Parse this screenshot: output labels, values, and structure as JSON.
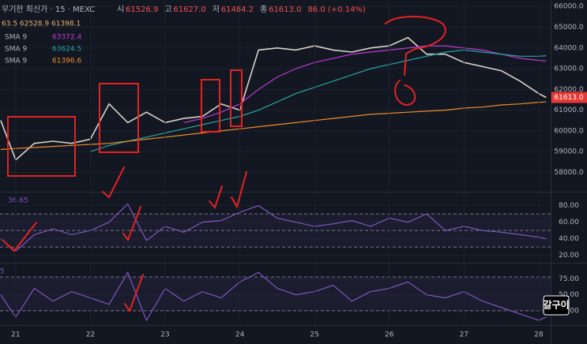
{
  "header": {
    "title": "무기한 최신가 · 15 · MEXC",
    "ohlc": [
      {
        "label": "시",
        "value": "61526.9"
      },
      {
        "label": "고",
        "value": "61627.0"
      },
      {
        "label": "저",
        "value": "61484.2"
      },
      {
        "label": "종",
        "value": "61613.0"
      },
      {
        "label": "",
        "value": "86.0 (+0.14%)"
      }
    ],
    "bands": "63.5  62528.9  61398.1",
    "watermark": "갈구이"
  },
  "chart_data": [
    {
      "type": "line",
      "x": [
        20.8,
        21,
        21.25,
        21.5,
        21.75,
        22,
        22.25,
        22.5,
        22.75,
        23,
        23.25,
        23.5,
        23.75,
        24,
        24.25,
        24.5,
        24.75,
        25,
        25.25,
        25.5,
        25.75,
        26,
        26.25,
        26.5,
        26.75,
        27,
        27.25,
        27.5,
        27.75,
        28,
        28.1
      ],
      "xlim": [
        20.79,
        28.16
      ],
      "ylim": [
        57180,
        66160
      ],
      "yticks": [
        {
          "value": 58000,
          "label": "58000.0"
        },
        {
          "value": 59000,
          "label": "59000.0"
        },
        {
          "value": 60000,
          "label": "60000.0"
        },
        {
          "value": 61000,
          "label": "61000.0"
        },
        {
          "value": 62000,
          "label": "62000.0"
        },
        {
          "value": 63000,
          "label": "63000.0"
        },
        {
          "value": 64000,
          "label": "64000.0"
        },
        {
          "value": 65000,
          "label": "65000.0"
        },
        {
          "value": 66000,
          "label": "66000.0"
        }
      ],
      "series": [
        {
          "color": "#d9d2c8",
          "values": [
            60500,
            58600,
            59400,
            59500,
            59400,
            59600,
            61300,
            60400,
            60900,
            60400,
            60600,
            60700,
            61300,
            61000,
            63900,
            64000,
            63900,
            64100,
            63900,
            63800,
            64000,
            64100,
            64500,
            63700,
            63700,
            63300,
            63100,
            62900,
            62400,
            61800,
            61613
          ],
          "value_labels": [
            null,
            null,
            null,
            null,
            null,
            null,
            null,
            null,
            null,
            null,
            null,
            null,
            null,
            null,
            null,
            null,
            null,
            null,
            null,
            null,
            null,
            null,
            null,
            null,
            null,
            null,
            null,
            null,
            null,
            null,
            "61613.0"
          ]
        },
        {
          "name": "SMA 9",
          "color": "#c03bd6",
          "values": [
            null,
            null,
            null,
            null,
            null,
            null,
            null,
            null,
            null,
            null,
            60400,
            60600,
            60900,
            61300,
            62000,
            62600,
            63000,
            63300,
            63500,
            63700,
            63800,
            63900,
            64000,
            64100,
            64100,
            64000,
            63900,
            63700,
            63500,
            63400,
            63372.4
          ]
        },
        {
          "name": "SMA 9",
          "color": "#26a6a6",
          "values": [
            null,
            null,
            null,
            null,
            null,
            59000,
            59300,
            59500,
            59700,
            59900,
            60100,
            60300,
            60500,
            60700,
            61000,
            61400,
            61800,
            62100,
            62400,
            62700,
            63000,
            63200,
            63400,
            63600,
            63800,
            63900,
            63800,
            63700,
            63600,
            63600,
            63624.5
          ]
        },
        {
          "name": "SMA 9",
          "color": "#f08c28",
          "values": [
            59100,
            59150,
            59200,
            59250,
            59300,
            59350,
            59400,
            59500,
            59600,
            59700,
            59800,
            59900,
            60000,
            60100,
            60200,
            60300,
            60400,
            60500,
            60600,
            60700,
            60800,
            60850,
            60900,
            60950,
            61000,
            61100,
            61150,
            61250,
            61300,
            61380,
            61396.6
          ]
        }
      ]
    },
    {
      "type": "line",
      "title": "36.65",
      "x": [
        20.8,
        21,
        21.25,
        21.5,
        21.75,
        22,
        22.25,
        22.5,
        22.75,
        23,
        23.25,
        23.5,
        23.75,
        24,
        24.25,
        24.5,
        24.75,
        25,
        25.25,
        25.5,
        25.75,
        26,
        26.25,
        26.5,
        26.75,
        27,
        27.25,
        27.5,
        27.75,
        28,
        28.1
      ],
      "xlim": [
        20.79,
        28.16
      ],
      "ylim": [
        14,
        92
      ],
      "levels": [
        30,
        50,
        70
      ],
      "yticks": [
        {
          "value": 20,
          "label": "20.00"
        },
        {
          "value": 40,
          "label": "40.00"
        },
        {
          "value": 60,
          "label": "60.00"
        },
        {
          "value": 80,
          "label": "80.00"
        }
      ],
      "series": [
        {
          "color": "#7e57c2",
          "values": [
            40,
            25,
            45,
            52,
            45,
            50,
            60,
            82,
            38,
            55,
            48,
            60,
            62,
            72,
            80,
            65,
            60,
            55,
            58,
            62,
            55,
            65,
            60,
            70,
            50,
            55,
            50,
            48,
            45,
            42,
            40
          ]
        }
      ]
    },
    {
      "type": "line",
      "title": "5",
      "x": [
        20.8,
        21,
        21.25,
        21.5,
        21.75,
        22,
        22.25,
        22.5,
        22.75,
        23,
        23.25,
        23.5,
        23.75,
        24,
        24.25,
        24.5,
        24.75,
        25,
        25.25,
        25.5,
        25.75,
        26,
        26.25,
        26.5,
        26.75,
        27,
        27.25,
        27.5,
        27.75,
        28,
        28.1
      ],
      "xlim": [
        20.79,
        28.16
      ],
      "ylim": [
        5,
        94
      ],
      "levels": [
        25,
        78
      ],
      "xticks": [
        21,
        22,
        23,
        24,
        25,
        26,
        27,
        28
      ],
      "yticks": [
        {
          "value": 25,
          "label": "25.00"
        },
        {
          "value": 50,
          "label": "50.00"
        },
        {
          "value": 75,
          "label": "75.00"
        }
      ],
      "series": [
        {
          "color": "#7e57c2",
          "values": [
            50,
            15,
            60,
            40,
            55,
            45,
            35,
            85,
            10,
            60,
            40,
            55,
            45,
            70,
            85,
            60,
            50,
            55,
            65,
            40,
            55,
            60,
            70,
            50,
            45,
            55,
            40,
            30,
            20,
            10,
            15
          ]
        }
      ]
    }
  ]
}
